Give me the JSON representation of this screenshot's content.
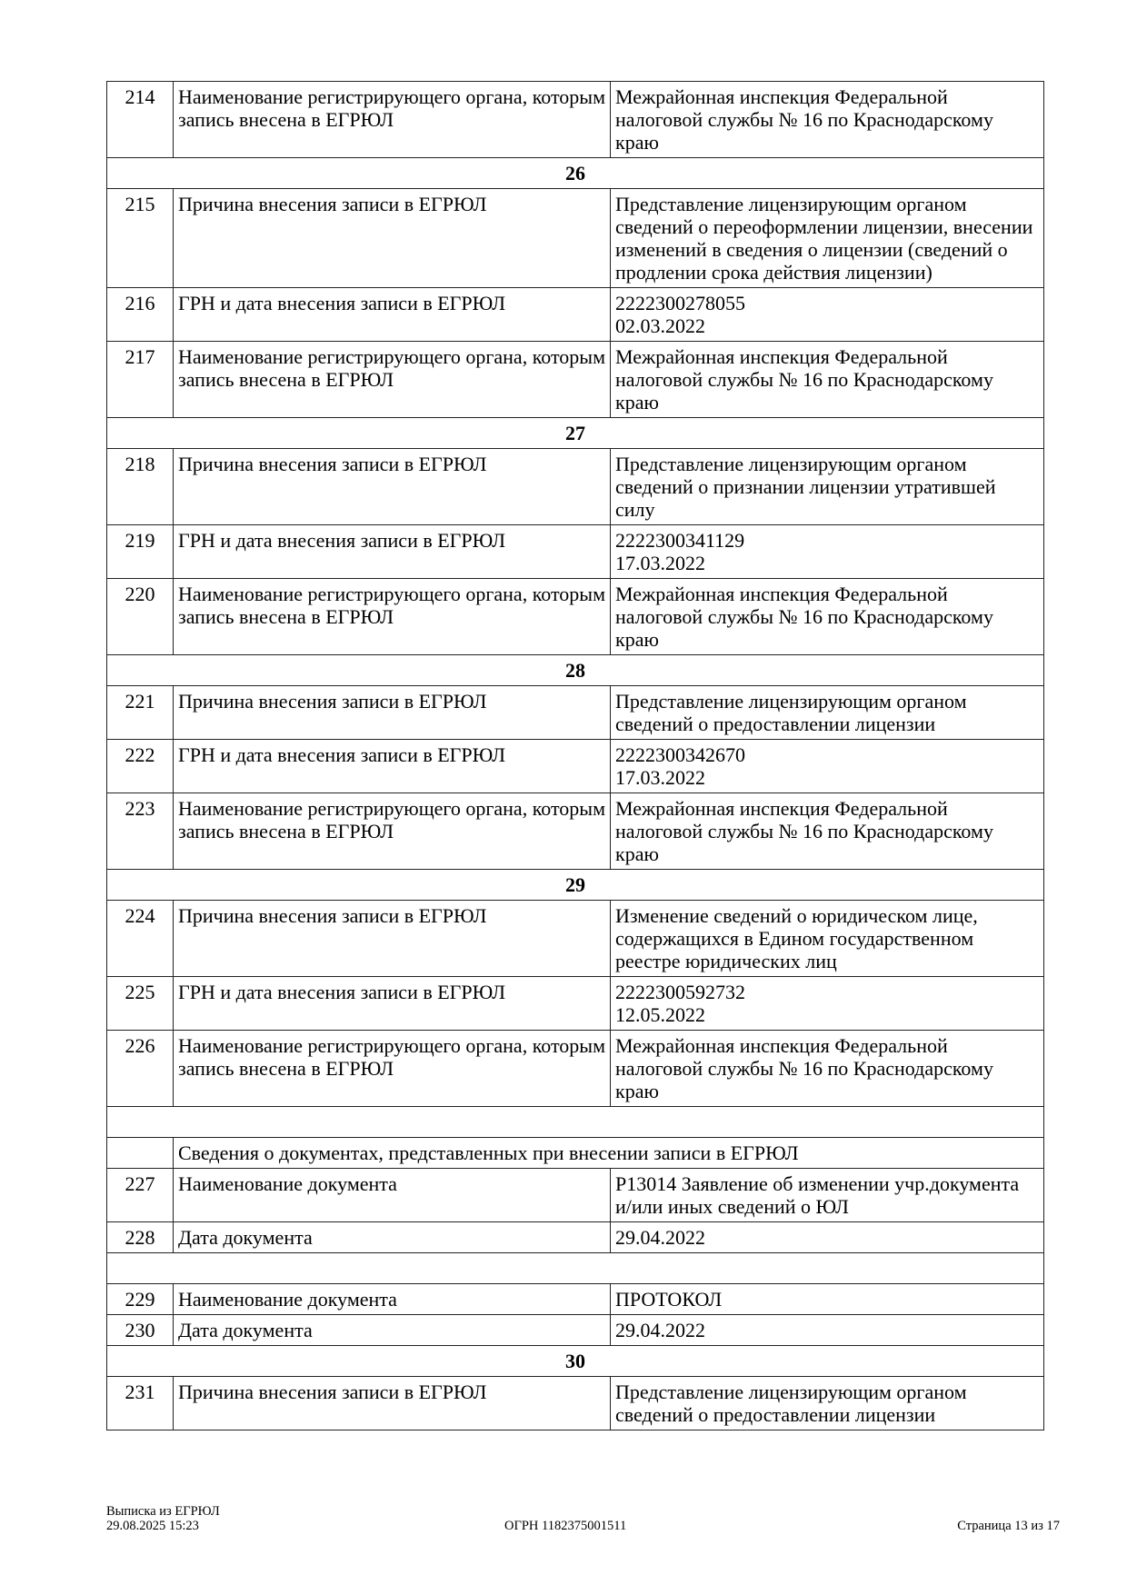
{
  "rows": [
    {
      "type": "row",
      "num": "214",
      "name": "Наименование регистрирующего органа, которым запись внесена в ЕГРЮЛ",
      "value": "Межрайонная инспекция Федеральной налоговой службы № 16 по Краснодарскому краю"
    },
    {
      "type": "section",
      "label": "26"
    },
    {
      "type": "row",
      "num": "215",
      "name": "Причина внесения записи в ЕГРЮЛ",
      "value": "Представление лицензирующим органом сведений о переоформлении лицензии, внесении изменений в сведения о лицензии (сведений о продлении срока действия лицензии)"
    },
    {
      "type": "row",
      "num": "216",
      "name": "ГРН и дата внесения записи в ЕГРЮЛ",
      "value": "2222300278055\n02.03.2022"
    },
    {
      "type": "row",
      "num": "217",
      "name": "Наименование регистрирующего органа, которым запись внесена в ЕГРЮЛ",
      "value": "Межрайонная инспекция Федеральной налоговой службы № 16 по Краснодарскому краю"
    },
    {
      "type": "section",
      "label": "27"
    },
    {
      "type": "row",
      "num": "218",
      "name": "Причина внесения записи в ЕГРЮЛ",
      "value": "Представление лицензирующим органом сведений о признании лицензии утратившей силу"
    },
    {
      "type": "row",
      "num": "219",
      "name": "ГРН и дата внесения записи в ЕГРЮЛ",
      "value": "2222300341129\n17.03.2022"
    },
    {
      "type": "row",
      "num": "220",
      "name": "Наименование регистрирующего органа, которым запись внесена в ЕГРЮЛ",
      "value": "Межрайонная инспекция Федеральной налоговой службы № 16 по Краснодарскому краю"
    },
    {
      "type": "section",
      "label": "28"
    },
    {
      "type": "row",
      "num": "221",
      "name": "Причина внесения записи в ЕГРЮЛ",
      "value": "Представление лицензирующим органом сведений о предоставлении лицензии"
    },
    {
      "type": "row",
      "num": "222",
      "name": "ГРН и дата внесения записи в ЕГРЮЛ",
      "value": "2222300342670\n17.03.2022"
    },
    {
      "type": "row",
      "num": "223",
      "name": "Наименование регистрирующего органа, которым запись внесена в ЕГРЮЛ",
      "value": "Межрайонная инспекция Федеральной налоговой службы № 16 по Краснодарскому краю"
    },
    {
      "type": "section",
      "label": "29"
    },
    {
      "type": "row",
      "num": "224",
      "name": "Причина внесения записи в ЕГРЮЛ",
      "value": "Изменение сведений о юридическом лице, содержащихся в Едином государственном реестре юридических лиц"
    },
    {
      "type": "row",
      "num": "225",
      "name": "ГРН и дата внесения записи в ЕГРЮЛ",
      "value": "2222300592732\n12.05.2022"
    },
    {
      "type": "row",
      "num": "226",
      "name": "Наименование регистрирующего органа, которым запись внесена в ЕГРЮЛ",
      "value": "Межрайонная инспекция Федеральной налоговой службы № 16 по Краснодарскому краю"
    },
    {
      "type": "blank"
    },
    {
      "type": "subheader",
      "label": "Сведения о документах, представленных при внесении записи в ЕГРЮЛ"
    },
    {
      "type": "row",
      "num": "227",
      "name": "Наименование документа",
      "value": "Р13014 Заявление об изменении учр.документа и/или иных сведений о ЮЛ"
    },
    {
      "type": "row",
      "num": "228",
      "name": "Дата документа",
      "value": "29.04.2022"
    },
    {
      "type": "blank"
    },
    {
      "type": "row",
      "num": "229",
      "name": "Наименование документа",
      "value": "ПРОТОКОЛ"
    },
    {
      "type": "row",
      "num": "230",
      "name": "Дата документа",
      "value": "29.04.2022"
    },
    {
      "type": "section",
      "label": "30"
    },
    {
      "type": "row",
      "num": "231",
      "name": "Причина внесения записи в ЕГРЮЛ",
      "value": "Представление лицензирующим органом сведений о предоставлении лицензии"
    }
  ],
  "footer": {
    "title": "Выписка из ЕГРЮЛ",
    "datetime": "29.08.2025 15:23",
    "ogrn": "ОГРН 1182375001511",
    "page": "Страница 13 из 17"
  }
}
